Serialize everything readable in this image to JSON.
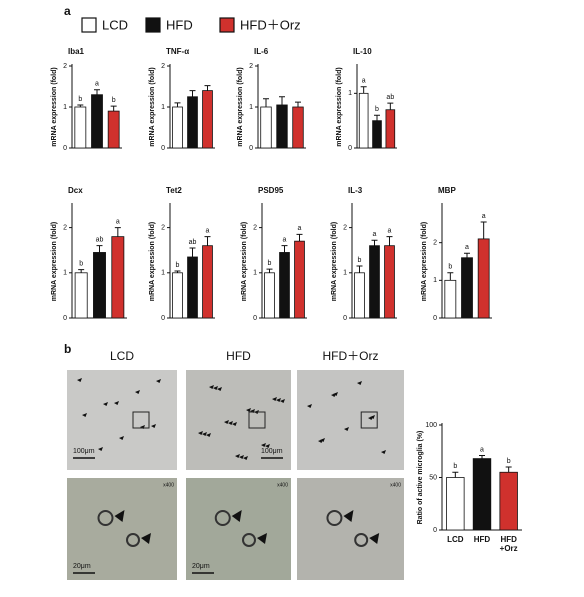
{
  "panel_a": {
    "label": "a",
    "legend": [
      {
        "name": "LCD",
        "color": "#ffffff"
      },
      {
        "name": "HFD",
        "color": "#111111"
      },
      {
        "name": "HFD＋Orz",
        "color": "#d0312d"
      }
    ]
  },
  "chart_data": [
    {
      "type": "bar",
      "title": "Iba1",
      "y_label": "mRNA expression (fold)",
      "categories": [
        null,
        null,
        null
      ],
      "values": [
        1.0,
        1.3,
        0.9
      ],
      "errors": [
        0.05,
        0.12,
        0.12
      ],
      "letters": [
        "b",
        "a",
        "b"
      ],
      "colors": [
        "#ffffff",
        "#111111",
        "#d0312d"
      ],
      "ylim": [
        0,
        2
      ],
      "yticks": [
        0,
        1,
        2
      ]
    },
    {
      "type": "bar",
      "title": "TNF-α",
      "y_label": "mRNA expression (fold)",
      "categories": [
        null,
        null,
        null
      ],
      "values": [
        1.0,
        1.25,
        1.4
      ],
      "errors": [
        0.1,
        0.15,
        0.12
      ],
      "colors": [
        "#ffffff",
        "#111111",
        "#d0312d"
      ],
      "ylim": [
        0,
        2
      ],
      "yticks": [
        0,
        1,
        2
      ]
    },
    {
      "type": "bar",
      "title": "IL-6",
      "y_label": "mRNA expression (fold)",
      "categories": [
        null,
        null,
        null
      ],
      "values": [
        1.0,
        1.05,
        1.0
      ],
      "errors": [
        0.2,
        0.2,
        0.12
      ],
      "colors": [
        "#ffffff",
        "#111111",
        "#d0312d"
      ],
      "ylim": [
        0,
        2
      ],
      "yticks": [
        0,
        1,
        2
      ]
    },
    {
      "type": "bar",
      "title": "IL-10",
      "y_label": "mRNA expression (fold)",
      "categories": [
        null,
        null,
        null
      ],
      "values": [
        1.0,
        0.5,
        0.7
      ],
      "errors": [
        0.12,
        0.1,
        0.12
      ],
      "letters": [
        "a",
        "b",
        "ab"
      ],
      "colors": [
        "#ffffff",
        "#111111",
        "#d0312d"
      ],
      "ylim": [
        0,
        1.5
      ],
      "yticks": [
        0,
        1
      ]
    },
    {
      "type": "bar",
      "title": "Dcx",
      "y_label": "mRNA expression (fold)",
      "categories": [
        null,
        null,
        null
      ],
      "values": [
        1.0,
        1.45,
        1.8
      ],
      "errors": [
        0.07,
        0.15,
        0.2
      ],
      "letters": [
        "b",
        "ab",
        "a"
      ],
      "colors": [
        "#ffffff",
        "#111111",
        "#d0312d"
      ],
      "ylim": [
        0,
        2.5
      ],
      "yticks": [
        0,
        1,
        2
      ]
    },
    {
      "type": "bar",
      "title": "Tet2",
      "y_label": "mRNA expression (fold)",
      "categories": [
        null,
        null,
        null
      ],
      "values": [
        1.0,
        1.35,
        1.6
      ],
      "errors": [
        0.04,
        0.2,
        0.2
      ],
      "letters": [
        "b",
        "ab",
        "a"
      ],
      "colors": [
        "#ffffff",
        "#111111",
        "#d0312d"
      ],
      "ylim": [
        0,
        2.5
      ],
      "yticks": [
        0,
        1,
        2
      ]
    },
    {
      "type": "bar",
      "title": "PSD95",
      "y_label": "mRNA expression (fold)",
      "categories": [
        null,
        null,
        null
      ],
      "values": [
        1.0,
        1.45,
        1.7
      ],
      "errors": [
        0.08,
        0.15,
        0.15
      ],
      "letters": [
        "b",
        "a",
        "a"
      ],
      "colors": [
        "#ffffff",
        "#111111",
        "#d0312d"
      ],
      "ylim": [
        0,
        2.5
      ],
      "yticks": [
        0,
        1,
        2
      ]
    },
    {
      "type": "bar",
      "title": "IL-3",
      "y_label": "mRNA expression (fold)",
      "categories": [
        null,
        null,
        null
      ],
      "values": [
        1.0,
        1.6,
        1.6
      ],
      "errors": [
        0.15,
        0.12,
        0.2
      ],
      "letters": [
        "b",
        "a",
        "a"
      ],
      "colors": [
        "#ffffff",
        "#111111",
        "#d0312d"
      ],
      "ylim": [
        0,
        2.5
      ],
      "yticks": [
        0,
        1,
        2
      ]
    },
    {
      "type": "bar",
      "title": "MBP",
      "y_label": "mRNA expression (fold)",
      "categories": [
        null,
        null,
        null
      ],
      "values": [
        1.0,
        1.6,
        2.1
      ],
      "errors": [
        0.2,
        0.12,
        0.45
      ],
      "letters": [
        "b",
        "a",
        "a"
      ],
      "colors": [
        "#ffffff",
        "#111111",
        "#d0312d"
      ],
      "ylim": [
        0,
        3
      ],
      "yticks": [
        0,
        1,
        2
      ]
    },
    {
      "type": "bar",
      "y_label": "Ratio of active microglia (%)",
      "categories": [
        "LCD",
        "HFD",
        "HFD +Orz"
      ],
      "values": [
        50,
        68,
        55
      ],
      "errors": [
        5,
        3,
        5
      ],
      "letters": [
        "b",
        "a",
        "b"
      ],
      "colors": [
        "#ffffff",
        "#111111",
        "#d0312d"
      ],
      "ylim": [
        0,
        100
      ],
      "yticks": [
        0,
        50,
        100
      ]
    }
  ],
  "panel_b": {
    "label": "b",
    "images": [
      {
        "title": "LCD",
        "scale_top": "100μm",
        "zoom": "x400",
        "scale_bottom": "20μm"
      },
      {
        "title": "HFD",
        "scale_top": "100μm",
        "zoom": "x400",
        "scale_bottom": "20μm"
      },
      {
        "title": "HFD＋Orz",
        "zoom": "x400"
      }
    ]
  }
}
